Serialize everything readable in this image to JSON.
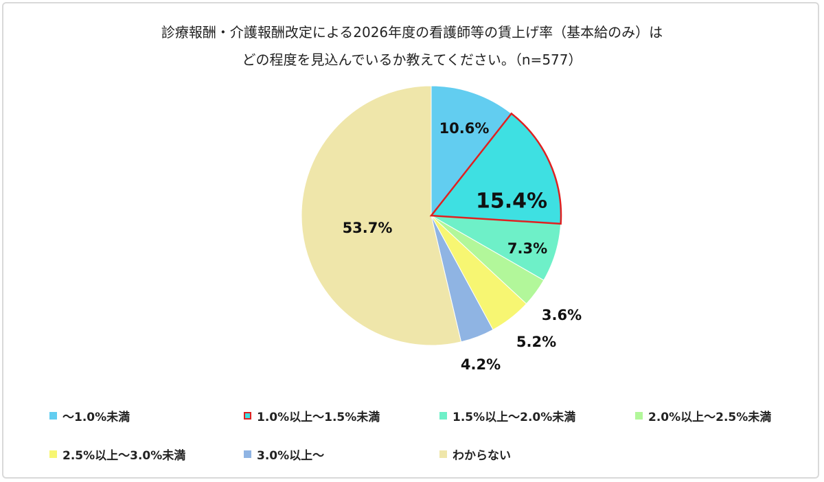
{
  "chart_data": {
    "type": "pie",
    "title_line1": "診療報酬・介護報酬改定による2026年度の看護師等の賃上げ率（基本給のみ）は",
    "title_line2": "どの程度を見込んでいるか教えてください。（n=577）",
    "slices": [
      {
        "label": "～1.0%未満",
        "value": 10.6,
        "display": "10.6%",
        "color": "#62cdf0"
      },
      {
        "label": "1.0%以上～1.5%未満",
        "value": 15.4,
        "display": "15.4%",
        "color": "#3ee0e2",
        "highlight": true,
        "border_color": "#e02020"
      },
      {
        "label": "1.5%以上～2.0%未満",
        "value": 7.3,
        "display": "7.3%",
        "color": "#6ef0c8"
      },
      {
        "label": "2.0%以上～2.5%未満",
        "value": 3.6,
        "display": "3.6%",
        "color": "#b2f79a"
      },
      {
        "label": "2.5%以上～3.0%未満",
        "value": 5.2,
        "display": "5.2%",
        "color": "#f7f672"
      },
      {
        "label": "3.0%以上～",
        "value": 4.2,
        "display": "4.2%",
        "color": "#8fb4e3"
      },
      {
        "label": "わからない",
        "value": 53.7,
        "display": "53.7%",
        "color": "#efe6aa"
      }
    ],
    "legend_position": "bottom"
  }
}
